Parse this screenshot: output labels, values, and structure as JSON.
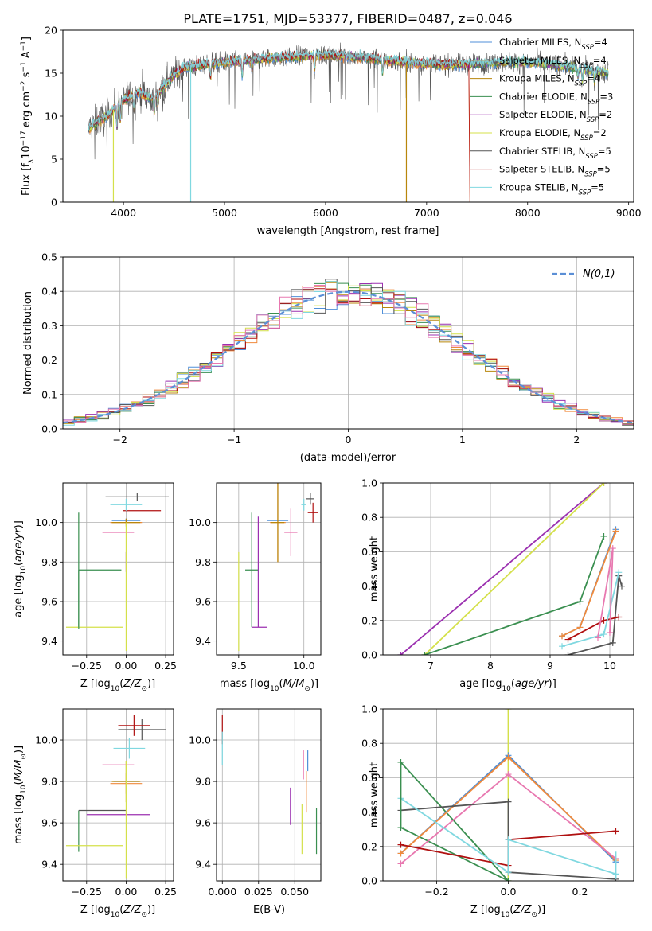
{
  "figure_title": "PLATE=1751, MJD=53377, FIBERID=0487, z=0.046",
  "colors": {
    "chabrier_miles": "#4f8fd8",
    "salpeter_miles": "#f08a3c",
    "kroupa_miles": "#b8860b",
    "chabrier_elodie": "#3a8f50",
    "salpeter_elodie": "#9b30b0",
    "kroupa_elodie": "#d4e04a",
    "chabrier_stelib": "#555555",
    "salpeter_stelib": "#b01010",
    "kroupa_stelib": "#80d8e0",
    "pink": "#e878b0",
    "gaussian": "#5b8fd6"
  },
  "chart_data": [
    {
      "id": "spectrum",
      "type": "line",
      "xlabel": "wavelength [Angstrom, rest frame]",
      "ylabel": "Flux [f",
      "xlim": [
        3400,
        9050
      ],
      "ylim": [
        0,
        20
      ],
      "xticks": [
        4000,
        5000,
        6000,
        7000,
        8000,
        9000
      ],
      "yticks": [
        0,
        5,
        10,
        15,
        20
      ],
      "legend_position": "top-right",
      "series": [
        {
          "name": "Chabrier MILES, N",
          "key": "chabrier_miles",
          "label_n": "4"
        },
        {
          "name": "Salpeter MILES, N",
          "key": "salpeter_miles",
          "label_n": "4"
        },
        {
          "name": "Kroupa MILES, N",
          "key": "kroupa_miles",
          "label_n": "4"
        },
        {
          "name": "Chabrier ELODIE, N",
          "key": "chabrier_elodie",
          "label_n": "3"
        },
        {
          "name": "Salpeter ELODIE, N",
          "key": "salpeter_elodie",
          "label_n": "2"
        },
        {
          "name": "Kroupa ELODIE, N",
          "key": "kroupa_elodie",
          "label_n": "2"
        },
        {
          "name": "Chabrier STELIB, N",
          "key": "chabrier_stelib",
          "label_n": "5"
        },
        {
          "name": "Salpeter STELIB, N",
          "key": "salpeter_stelib",
          "label_n": "5"
        },
        {
          "name": "Kroupa STELIB, N",
          "key": "kroupa_stelib",
          "label_n": "5"
        }
      ],
      "continuum": {
        "x": [
          3650,
          3750,
          3850,
          3950,
          4050,
          4150,
          4300,
          4400,
          4500,
          4600,
          4800,
          5000,
          5200,
          5500,
          5800,
          6000,
          6300,
          6600,
          6900,
          7200,
          7500,
          7800,
          8100,
          8400,
          8800
        ],
        "y": [
          8.5,
          9.5,
          10.0,
          11.5,
          12.2,
          12.8,
          12.0,
          13.5,
          14.8,
          15.6,
          16.0,
          16.3,
          16.5,
          16.8,
          17.0,
          17.1,
          16.9,
          16.5,
          16.2,
          16.0,
          16.1,
          16.3,
          16.2,
          15.8,
          15.0
        ]
      }
    },
    {
      "id": "residuals",
      "type": "histogram",
      "xlabel": "(data-model)/error",
      "ylabel": "Normed distribution",
      "xlim": [
        -2.5,
        2.5
      ],
      "ylim": [
        0,
        0.5
      ],
      "xticks": [
        -2,
        -1,
        0,
        1,
        2
      ],
      "yticks": [
        0.0,
        0.1,
        0.2,
        0.3,
        0.4,
        0.5
      ],
      "legend": "N(0,1)",
      "bin_width": 0.1
    },
    {
      "id": "age_vs_Z",
      "type": "scatter",
      "xlabel": "Z [log",
      "ylabel": "age  [log",
      "xlim": [
        -0.4,
        0.3
      ],
      "ylim": [
        9.33,
        10.2
      ],
      "xticks": [
        -0.25,
        0.0,
        0.25
      ],
      "yticks": [
        9.4,
        9.6,
        9.8,
        10.0
      ]
    },
    {
      "id": "age_vs_mass",
      "type": "scatter",
      "xlabel": "mass [log",
      "ylabel": "",
      "xlim": [
        9.33,
        10.13
      ],
      "ylim": [
        9.33,
        10.2
      ],
      "xticks": [
        9.5,
        10.0
      ],
      "yticks": [
        9.4,
        9.6,
        9.8,
        10.0
      ]
    },
    {
      "id": "weight_vs_age",
      "type": "line",
      "xlabel": "age  [log",
      "ylabel": "mass weight",
      "xlim": [
        6.2,
        10.4
      ],
      "ylim": [
        0.0,
        1.0
      ],
      "xticks": [
        7,
        8,
        9,
        10
      ],
      "yticks": [
        0.0,
        0.2,
        0.4,
        0.6,
        0.8,
        1.0
      ]
    },
    {
      "id": "mass_vs_Z",
      "type": "scatter",
      "xlabel": "Z [log",
      "ylabel": "mass [log",
      "xlim": [
        -0.4,
        0.3
      ],
      "ylim": [
        9.32,
        10.15
      ],
      "xticks": [
        -0.25,
        0.0,
        0.25
      ],
      "yticks": [
        9.4,
        9.6,
        9.8,
        10.0
      ]
    },
    {
      "id": "mass_vs_ebv",
      "type": "scatter",
      "xlabel": "E(B-V)",
      "ylabel": "",
      "xlim": [
        -0.004,
        0.068
      ],
      "ylim": [
        9.32,
        10.15
      ],
      "xticks": [
        0.0,
        0.025,
        0.05
      ],
      "yticks": [
        9.4,
        9.6,
        9.8,
        10.0
      ]
    },
    {
      "id": "weight_vs_Z",
      "type": "line",
      "xlabel": "Z [log",
      "ylabel": "mass weight",
      "xlim": [
        -0.35,
        0.35
      ],
      "ylim": [
        0.0,
        1.0
      ],
      "xticks": [
        -0.2,
        0.0,
        0.2
      ],
      "yticks": [
        0.0,
        0.2,
        0.4,
        0.6,
        0.8,
        1.0
      ]
    }
  ]
}
